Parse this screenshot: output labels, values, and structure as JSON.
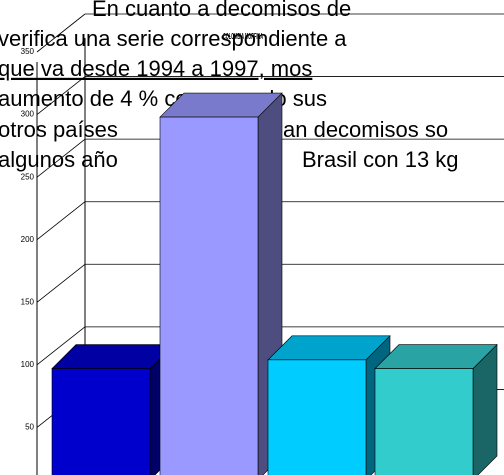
{
  "document": {
    "lines": [
      "En cuanto a decomisos de",
      "verifica una serie correspondiente a",
      "que va desde 1994 a 1997, mos",
      "aumento de 4 % comparando sus",
      "otros países",
      "an decomisos so",
      "algunos año",
      "Brasil con 13 kg"
    ]
  },
  "chart_data": {
    "type": "bar3d",
    "title": "COLOMBIA MORFINA",
    "values": [
      97,
      298,
      104,
      97
    ],
    "colors": [
      "#0000cc",
      "#9999ff",
      "#00ccff",
      "#33cccc"
    ],
    "ylim": [
      0,
      350
    ],
    "yticks": [
      50,
      100,
      150,
      200,
      250,
      300,
      350
    ],
    "grid": true
  }
}
